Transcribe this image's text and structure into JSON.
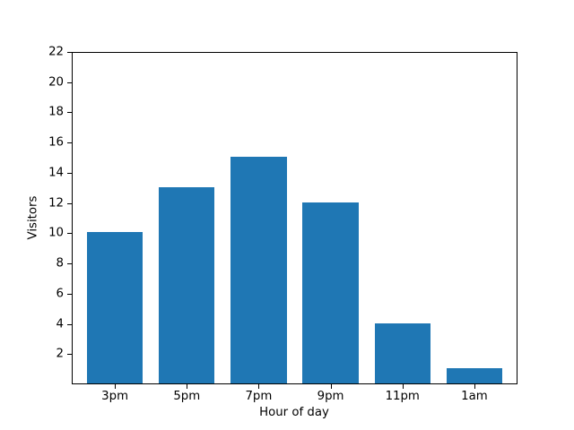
{
  "figure": {
    "background": "#ffffff",
    "axis_color": "#000000",
    "text_color": "#000000"
  },
  "chart_data": {
    "type": "bar",
    "title": "",
    "xlabel": "Hour of day",
    "ylabel": "Visitors",
    "categories": [
      "3pm",
      "5pm",
      "7pm",
      "9pm",
      "11pm",
      "1am"
    ],
    "values": [
      10,
      13,
      15,
      12,
      4,
      1
    ],
    "ylim": [
      0,
      22
    ],
    "yticks": [
      2,
      4,
      6,
      8,
      10,
      12,
      14,
      16,
      18,
      20,
      22
    ],
    "bar_color": "#1f77b4",
    "bar_width_fraction": 0.8,
    "grid": false,
    "legend": "none"
  }
}
